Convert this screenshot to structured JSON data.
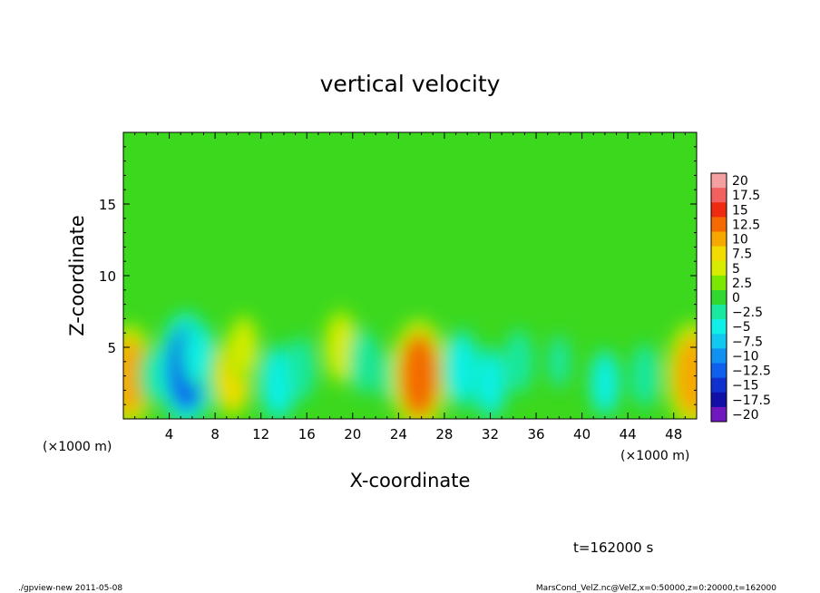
{
  "chart_data": {
    "type": "heatmap",
    "title": "vertical velocity",
    "xlabel": "X-coordinate",
    "ylabel": "Z-coordinate",
    "x_unit_label_left": "(×1000 m)",
    "x_unit_label_right": "(×1000 m)",
    "xlim": [
      0,
      50
    ],
    "ylim": [
      0,
      20
    ],
    "x_ticks": [
      4,
      8,
      12,
      16,
      20,
      24,
      28,
      32,
      36,
      40,
      44,
      48
    ],
    "y_ticks": [
      5,
      10,
      15
    ],
    "colorbar": {
      "labels": [
        "20",
        "17.5",
        "15",
        "12.5",
        "10",
        "7.5",
        "5",
        "2.5",
        "0",
        "−2.5",
        "−5",
        "−7.5",
        "−10",
        "−12.5",
        "−15",
        "−17.5",
        "−20"
      ],
      "levels": [
        20,
        17.5,
        15,
        12.5,
        10,
        7.5,
        5,
        2.5,
        0,
        -2.5,
        -5,
        -7.5,
        -10,
        -12.5,
        -15,
        -17.5,
        -20
      ],
      "colors": [
        "#f4a0a0",
        "#f26060",
        "#ee2a10",
        "#f46a00",
        "#f6a800",
        "#f2dc00",
        "#d8ec00",
        "#7ae800",
        "#30d830",
        "#18e8a0",
        "#10f0e8",
        "#10c8f0",
        "#1090f0",
        "#1060f0",
        "#1030d0",
        "#1010a8",
        "#7018c0"
      ]
    },
    "field_blobs": [
      {
        "x": 0.5,
        "z": 3.0,
        "value": 10
      },
      {
        "x": 2.5,
        "z": 3.0,
        "value": -2.5
      },
      {
        "x": 5.5,
        "z": 3.5,
        "value": -12
      },
      {
        "x": 6.5,
        "z": 4.5,
        "value": -4
      },
      {
        "x": 9.5,
        "z": 3.0,
        "value": 8
      },
      {
        "x": 10.5,
        "z": 5.0,
        "value": 4
      },
      {
        "x": 13.5,
        "z": 2.5,
        "value": -6
      },
      {
        "x": 15.5,
        "z": 3.5,
        "value": -3
      },
      {
        "x": 19.0,
        "z": 5.0,
        "value": 6
      },
      {
        "x": 21.0,
        "z": 4.0,
        "value": -3
      },
      {
        "x": 23.0,
        "z": 3.0,
        "value": -2
      },
      {
        "x": 25.8,
        "z": 3.0,
        "value": 12
      },
      {
        "x": 29.5,
        "z": 3.5,
        "value": -6
      },
      {
        "x": 32.0,
        "z": 2.5,
        "value": -5
      },
      {
        "x": 34.5,
        "z": 4.0,
        "value": -3
      },
      {
        "x": 38.0,
        "z": 4.0,
        "value": -2.5
      },
      {
        "x": 42.0,
        "z": 2.5,
        "value": -4
      },
      {
        "x": 45.5,
        "z": 3.0,
        "value": -3
      },
      {
        "x": 49.7,
        "z": 3.0,
        "value": 11
      }
    ]
  },
  "annotations": {
    "time": "t=162000 s",
    "footer_left": "./gpview-new  2011-05-08",
    "footer_right": "MarsCond_VelZ.nc@VelZ,x=0:50000,z=0:20000,t=162000"
  }
}
